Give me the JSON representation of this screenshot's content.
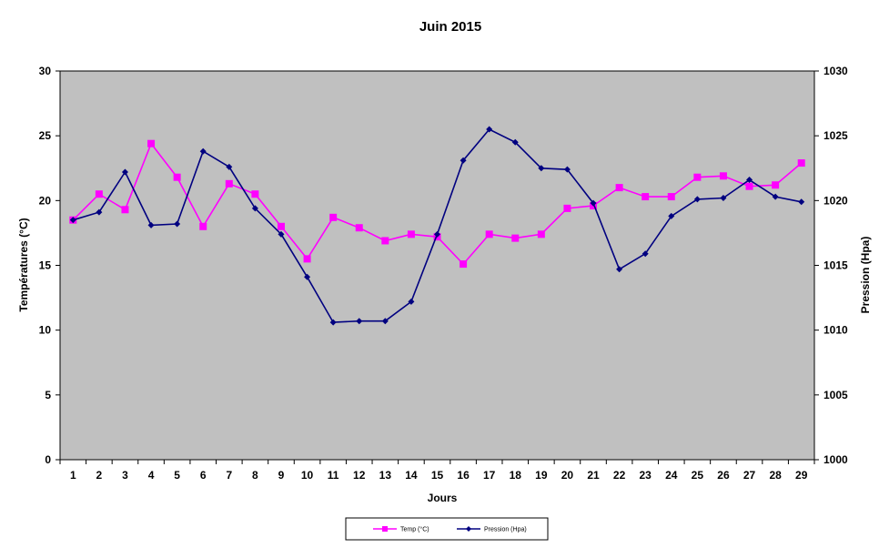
{
  "chart_data": {
    "type": "line",
    "title": "Juin 2015",
    "xlabel": "Jours",
    "ylabel_left": "Températures (°C)",
    "ylabel_right": "Pression (Hpa)",
    "x": [
      "1",
      "2",
      "3",
      "4",
      "5",
      "6",
      "7",
      "8",
      "9",
      "10",
      "11",
      "12",
      "13",
      "14",
      "15",
      "16",
      "17",
      "18",
      "19",
      "20",
      "21",
      "22",
      "23",
      "24",
      "25",
      "26",
      "27",
      "28",
      "29"
    ],
    "ylim_left": [
      0,
      30
    ],
    "yticks_left": [
      "0",
      "5",
      "10",
      "15",
      "20",
      "25",
      "30"
    ],
    "ylim_right": [
      1000,
      1030
    ],
    "yticks_right": [
      "1000",
      "1005",
      "1010",
      "1015",
      "1020",
      "1025",
      "1030"
    ],
    "grid": false,
    "plot_background": "#c0c0c0",
    "legend_position": "bottom",
    "series": [
      {
        "name": "Temp (°C)",
        "axis": "left",
        "color": "#ff00ff",
        "marker": "square",
        "values": [
          18.5,
          20.5,
          19.3,
          24.4,
          21.8,
          18.0,
          21.3,
          20.5,
          18.0,
          15.5,
          18.7,
          17.9,
          16.9,
          17.4,
          17.2,
          15.1,
          17.4,
          17.1,
          17.4,
          19.4,
          19.6,
          21.0,
          20.3,
          20.3,
          21.8,
          21.9,
          21.1,
          21.2,
          22.9
        ]
      },
      {
        "name": "Pression (Hpa)",
        "axis": "right",
        "color": "#000080",
        "marker": "diamond",
        "values": [
          1018.5,
          1019.1,
          1022.2,
          1018.1,
          1018.2,
          1023.8,
          1022.6,
          1019.4,
          1017.4,
          1014.1,
          1010.6,
          1010.7,
          1010.7,
          1012.2,
          1017.4,
          1023.1,
          1025.5,
          1024.5,
          1022.5,
          1022.4,
          1019.8,
          1014.7,
          1015.9,
          1018.8,
          1020.1,
          1020.2,
          1021.6,
          1020.3,
          1019.9
        ]
      }
    ]
  }
}
